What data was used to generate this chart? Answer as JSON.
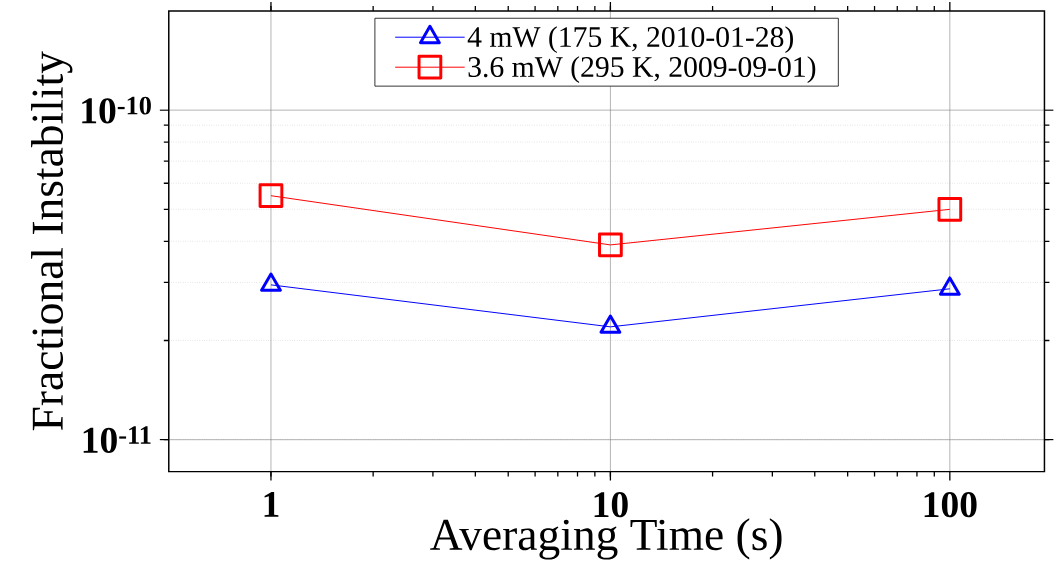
{
  "chart_data": {
    "type": "line",
    "xlabel": "Averaging Time (s)",
    "ylabel": "Fractional Instability",
    "x": [
      1,
      10,
      100
    ],
    "series": [
      {
        "name": "4 mW (175 K, 2010-01-28)",
        "color": "#0000ff",
        "marker": "triangle",
        "values": [
          2.95e-11,
          2.2e-11,
          2.87e-11
        ]
      },
      {
        "name": "3.6 mW (295 K, 2009-09-01)",
        "color": "#ff0000",
        "marker": "square",
        "values": [
          5.5e-11,
          3.9e-11,
          5e-11
        ]
      }
    ],
    "log": "xy",
    "xlim": [
      0.5,
      190
    ],
    "ylim": [
      8e-12,
      2e-10
    ],
    "xticks": [
      1,
      10,
      100
    ],
    "yticks": [
      {
        "value": 1e-11,
        "label": "10$^{-11}$"
      },
      {
        "value": 1e-10,
        "label": "10$^{-10}$"
      }
    ],
    "grid": true,
    "legend": "top",
    "line_style": "solid"
  }
}
